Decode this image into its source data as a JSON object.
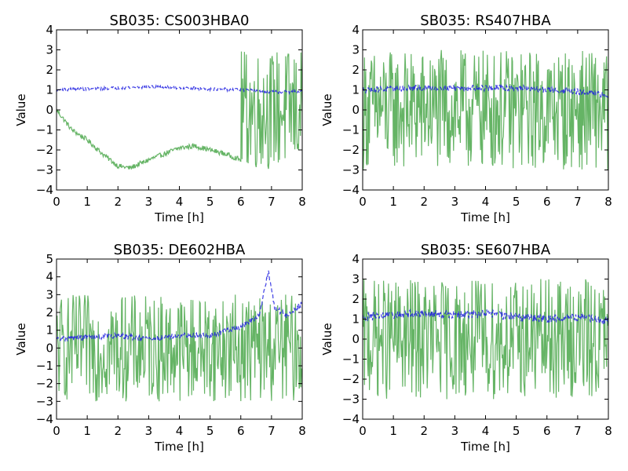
{
  "chart_data": [
    {
      "type": "line",
      "title": "SB035: CS003HBA0",
      "xlabel": "Time [h]",
      "ylabel": "Value",
      "xlim": [
        0,
        8
      ],
      "ylim": [
        -4,
        4
      ],
      "xticks": [
        0,
        1,
        2,
        3,
        4,
        5,
        6,
        7,
        8
      ],
      "yticks": [
        -4,
        -3,
        -2,
        -1,
        0,
        1,
        2,
        3,
        4
      ],
      "colors": {
        "series1": "#3fa13f",
        "series2": "#1f1fe0"
      },
      "series": [
        {
          "style": "solid",
          "kind": "drift",
          "anchors": [
            [
              0,
              0
            ],
            [
              0.5,
              -1.0
            ],
            [
              1.0,
              -1.5
            ],
            [
              1.5,
              -2.2
            ],
            [
              2.0,
              -2.8
            ],
            [
              2.4,
              -2.9
            ],
            [
              3.0,
              -2.5
            ],
            [
              3.5,
              -2.2
            ],
            [
              4.0,
              -1.9
            ],
            [
              4.5,
              -1.8
            ],
            [
              5.0,
              -2.0
            ],
            [
              5.5,
              -2.2
            ],
            [
              6.0,
              -2.5
            ]
          ],
          "noisy_after": 6.0,
          "noise_range": [
            -3.0,
            3.0
          ]
        },
        {
          "style": "dashed",
          "kind": "drift",
          "anchors": [
            [
              0,
              1.0
            ],
            [
              1,
              1.05
            ],
            [
              2,
              1.1
            ],
            [
              3,
              1.15
            ],
            [
              4,
              1.1
            ],
            [
              5,
              1.05
            ],
            [
              6,
              1.0
            ],
            [
              7,
              0.9
            ],
            [
              8,
              0.9
            ]
          ],
          "jitter": 0.08
        }
      ]
    },
    {
      "type": "line",
      "title": "SB035: RS407HBA",
      "xlabel": "Time [h]",
      "ylabel": "Value",
      "xlim": [
        0,
        8
      ],
      "ylim": [
        -4,
        4
      ],
      "xticks": [
        0,
        1,
        2,
        3,
        4,
        5,
        6,
        7,
        8
      ],
      "yticks": [
        -4,
        -3,
        -2,
        -1,
        0,
        1,
        2,
        3,
        4
      ],
      "colors": {
        "series1": "#3fa13f",
        "series2": "#1f1fe0"
      },
      "series": [
        {
          "style": "solid",
          "kind": "noise",
          "noise_range": [
            -3.0,
            3.0
          ]
        },
        {
          "style": "dashed",
          "kind": "drift",
          "anchors": [
            [
              0,
              1.0
            ],
            [
              2,
              1.1
            ],
            [
              3,
              1.1
            ],
            [
              4,
              1.1
            ],
            [
              5,
              1.1
            ],
            [
              6,
              1.0
            ],
            [
              7,
              0.9
            ],
            [
              8,
              0.7
            ]
          ],
          "jitter": 0.15
        }
      ]
    },
    {
      "type": "line",
      "title": "SB035: DE602HBA",
      "xlabel": "Time [h]",
      "ylabel": "Value",
      "xlim": [
        0,
        8
      ],
      "ylim": [
        -4,
        5
      ],
      "xticks": [
        0,
        1,
        2,
        3,
        4,
        5,
        6,
        7,
        8
      ],
      "yticks": [
        -4,
        -3,
        -2,
        -1,
        0,
        1,
        2,
        3,
        4,
        5
      ],
      "colors": {
        "series1": "#3fa13f",
        "series2": "#1f1fe0"
      },
      "series": [
        {
          "style": "solid",
          "kind": "noise",
          "noise_range": [
            -3.0,
            3.0
          ]
        },
        {
          "style": "dashed",
          "kind": "drift",
          "anchors": [
            [
              0,
              0.5
            ],
            [
              1,
              0.6
            ],
            [
              2,
              0.7
            ],
            [
              3,
              0.5
            ],
            [
              4,
              0.7
            ],
            [
              5,
              0.7
            ],
            [
              6,
              1.2
            ],
            [
              6.6,
              1.8
            ],
            [
              6.9,
              4.3
            ],
            [
              7.1,
              2.3
            ],
            [
              7.5,
              1.8
            ],
            [
              8,
              2.5
            ]
          ],
          "jitter": 0.15
        }
      ]
    },
    {
      "type": "line",
      "title": "SB035: SE607HBA",
      "xlabel": "Time [h]",
      "ylabel": "Value",
      "xlim": [
        0,
        8
      ],
      "ylim": [
        -4,
        4
      ],
      "xticks": [
        0,
        1,
        2,
        3,
        4,
        5,
        6,
        7,
        8
      ],
      "yticks": [
        -4,
        -3,
        -2,
        -1,
        0,
        1,
        2,
        3,
        4
      ],
      "colors": {
        "series1": "#3fa13f",
        "series2": "#1f1fe0"
      },
      "series": [
        {
          "style": "solid",
          "kind": "noise",
          "noise_range": [
            -3.0,
            3.0
          ]
        },
        {
          "style": "dashed",
          "kind": "drift",
          "anchors": [
            [
              0,
              1.1
            ],
            [
              1,
              1.2
            ],
            [
              2,
              1.3
            ],
            [
              3,
              1.2
            ],
            [
              4,
              1.3
            ],
            [
              5,
              1.1
            ],
            [
              6,
              1.0
            ],
            [
              7,
              1.1
            ],
            [
              8,
              0.9
            ]
          ],
          "jitter": 0.2
        }
      ]
    }
  ]
}
